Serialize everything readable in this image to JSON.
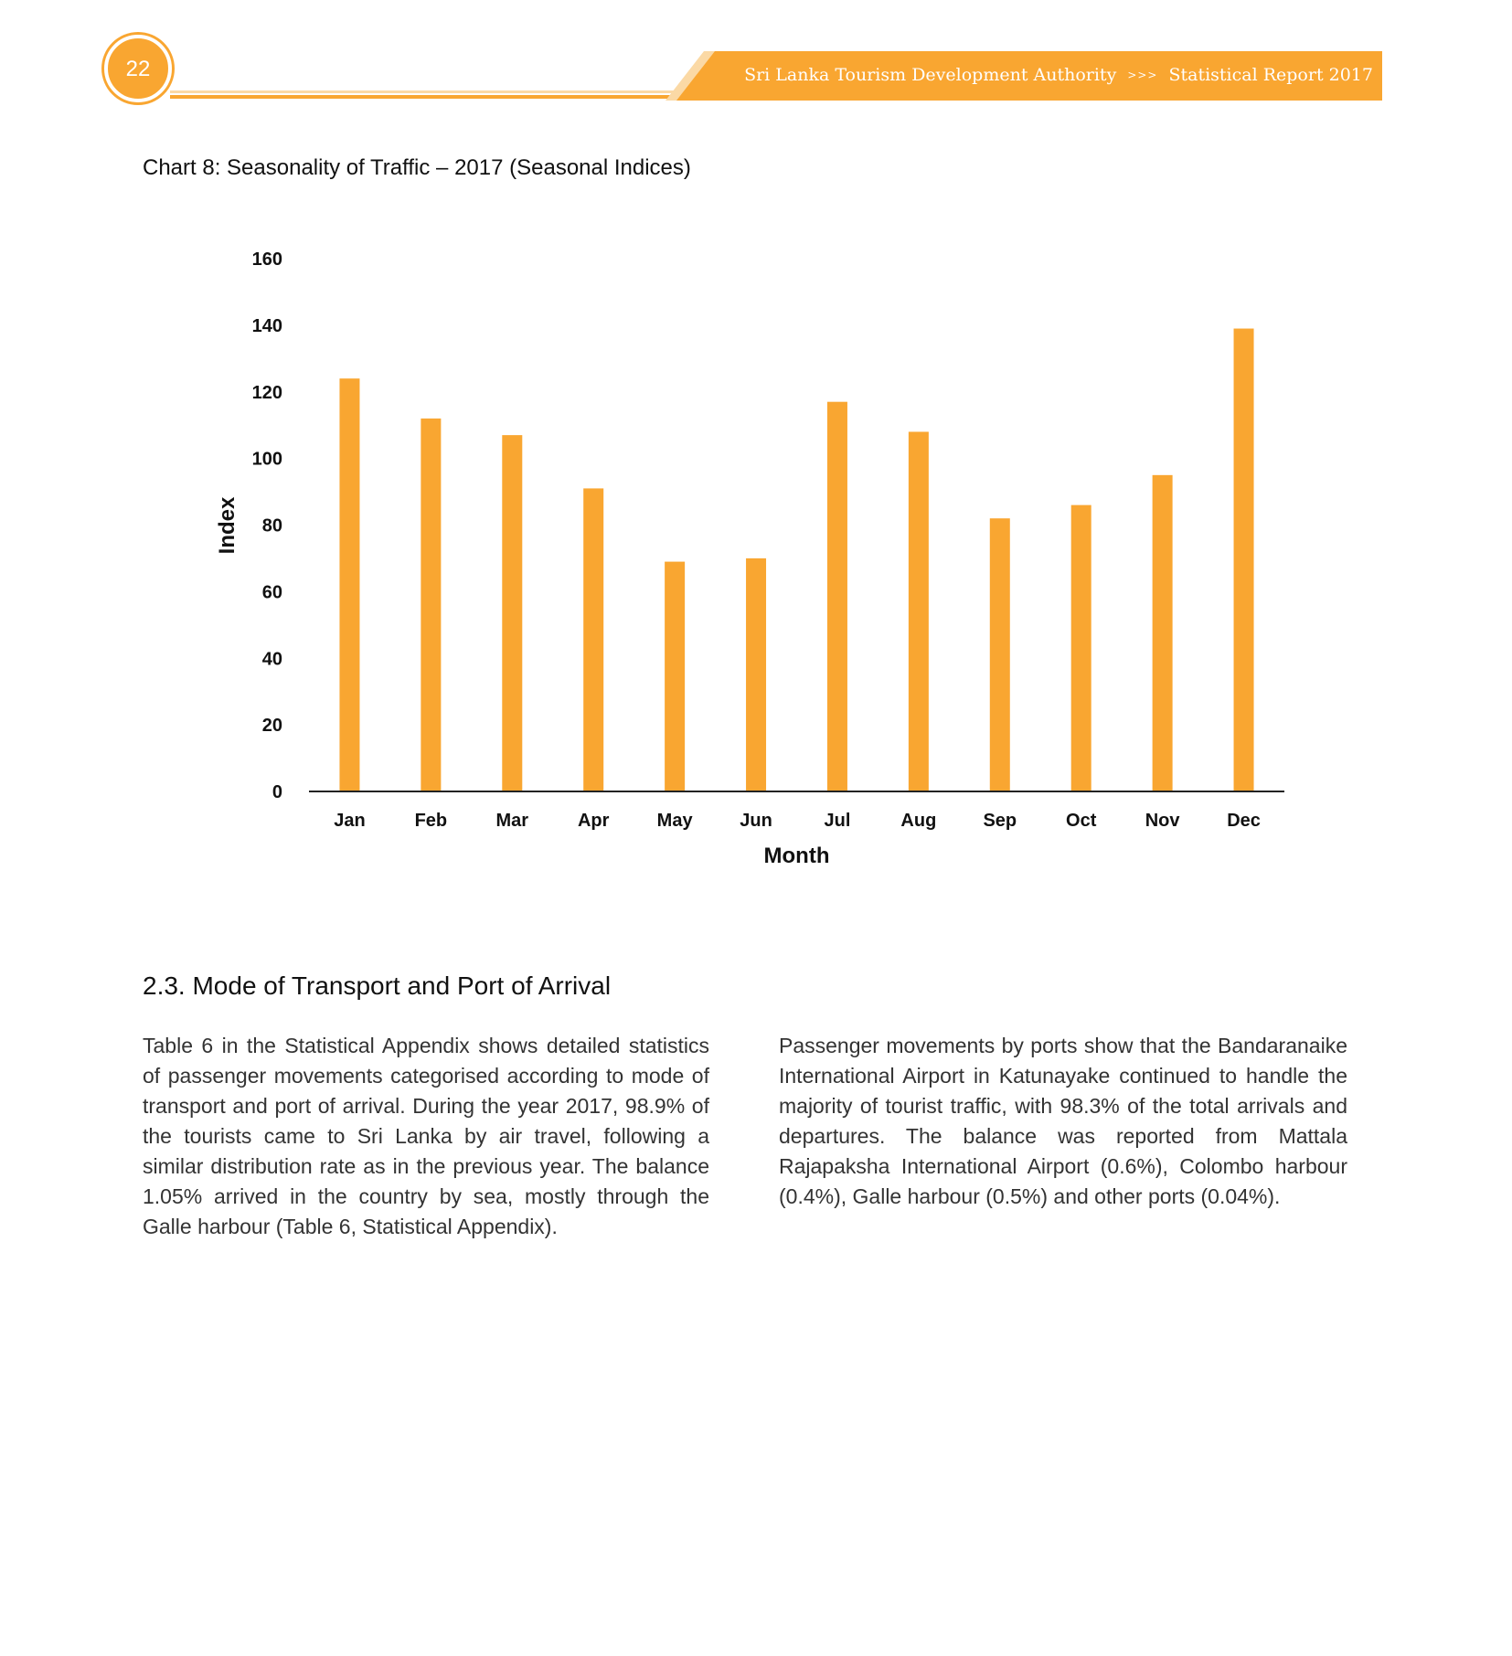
{
  "header": {
    "page_number": "22",
    "org": "Sri Lanka Tourism Development Authority",
    "separator": ">>>",
    "report": "Statistical Report 2017"
  },
  "chart_title": "Chart 8: Seasonality of Traffic – 2017 (Seasonal Indices)",
  "chart_data": {
    "type": "bar",
    "categories": [
      "Jan",
      "Feb",
      "Mar",
      "Apr",
      "May",
      "Jun",
      "Jul",
      "Aug",
      "Sep",
      "Oct",
      "Nov",
      "Dec"
    ],
    "values": [
      124,
      112,
      107,
      91,
      69,
      70,
      117,
      108,
      82,
      86,
      95,
      139
    ],
    "xlabel": "Month",
    "ylabel": "Index",
    "ylim": [
      0,
      160
    ],
    "yticks": [
      "0",
      "20",
      "40",
      "60",
      "80",
      "100",
      "120",
      "140",
      "160"
    ],
    "bar_color": "#f9a631",
    "grid": false,
    "legend": "none"
  },
  "section": {
    "heading": "2.3. Mode of Transport and Port of Arrival",
    "para_left": "Table 6 in the Statistical Appendix shows detailed statistics of passenger movements categorised according to mode of transport and port of arrival. During the year 2017, 98.9% of the tourists came to Sri Lanka by air travel, following a similar distribution rate as in the previous year. The balance 1.05% arrived in the country by sea, mostly through the Galle harbour (Table 6, Statistical Appendix).",
    "para_right": "Passenger movements by ports show that the Bandaranaike International Airport in Katunayake continued to handle the majority of tourist traffic, with 98.3% of the total arrivals and departures. The balance was reported from Mattala Rajapaksha International Airport (0.6%), Colombo harbour (0.4%), Galle harbour (0.5%) and other ports (0.04%)."
  },
  "colors": {
    "accent": "#f9a631",
    "accent_light": "#fbd9a5"
  }
}
